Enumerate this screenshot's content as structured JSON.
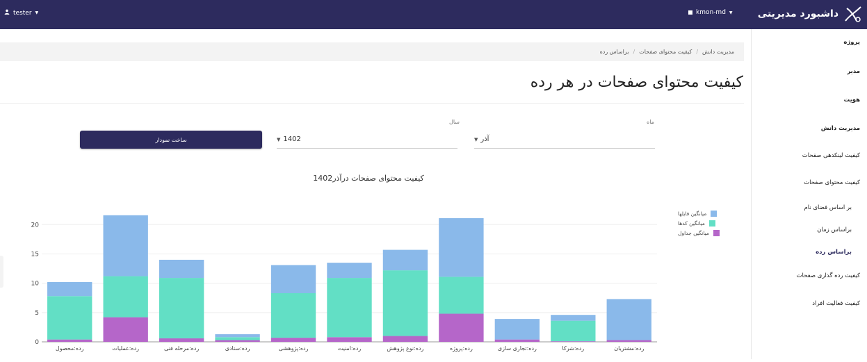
{
  "topbar": {
    "user": "tester",
    "project": "kmon-md",
    "brand_title": "داشبورد مدیریتی"
  },
  "sidebar": {
    "items": [
      {
        "label": "پروژه"
      },
      {
        "label": "مدیر"
      },
      {
        "label": "هویت"
      },
      {
        "label": "مدیریت دانش"
      },
      {
        "label": "کیفیت لینکدهی صفحات"
      },
      {
        "label": "کیفیت محتوای صفحات"
      },
      {
        "label": "بر اساس فضای نام"
      },
      {
        "label": "براساس زمان"
      },
      {
        "label": "براساس رده"
      },
      {
        "label": "کیفیت رده گذاری صفحات"
      },
      {
        "label": "کیفیت فعالیت افراد"
      }
    ]
  },
  "breadcrumb": {
    "items": [
      "مدیریت دانش",
      "کیفیت محتوای صفحات",
      "براساس رده"
    ]
  },
  "page_title": "کیفیت محتوای صفحات در هر رده",
  "filters": {
    "month_label": "ماه",
    "month_value": "آذر",
    "year_label": "سال",
    "year_value": "1402",
    "build_button": "ساخت نمودار"
  },
  "colors": {
    "files": "#8ab9ea",
    "codes": "#62dfc5",
    "tables": "#b566c9",
    "topbar": "#2d2b5e"
  },
  "chart_data": {
    "type": "bar",
    "stacked": true,
    "title": "کیفیت محتوای صفحات درآذر1402",
    "categories": [
      "رده:محصول",
      "رده:عملیات",
      "رده:مرحله فنی",
      "رده:ستادی",
      "رده:پژوهشی",
      "رده:امنیت",
      "رده:نوع پژوهش",
      "رده:پروژه",
      "رده:تجاری سازی",
      "رده:شرکا",
      "رده:مشتریان"
    ],
    "series": [
      {
        "name": "میانگین جداول",
        "color": "#b566c9",
        "values": [
          0.4,
          4.2,
          0.6,
          0.3,
          0.7,
          0.8,
          1.0,
          4.8,
          0.4,
          0.1,
          0.3
        ]
      },
      {
        "name": "میانگین کدها",
        "color": "#62dfc5",
        "values": [
          7.4,
          7.0,
          10.3,
          0.5,
          7.6,
          10.1,
          11.2,
          6.3,
          0.0,
          3.5,
          0.0
        ]
      },
      {
        "name": "میانگین فایلها",
        "color": "#8ab9ea",
        "values": [
          2.4,
          10.4,
          3.1,
          0.5,
          4.8,
          2.6,
          3.5,
          10.0,
          3.5,
          1.0,
          7.0
        ]
      }
    ],
    "legend_order": [
      "میانگین فایلها",
      "میانگین کدها",
      "میانگین جداول"
    ],
    "yticks": [
      0,
      5,
      10,
      15,
      20
    ],
    "ylim": [
      0,
      23
    ],
    "grid": true,
    "legend": "top-right"
  }
}
